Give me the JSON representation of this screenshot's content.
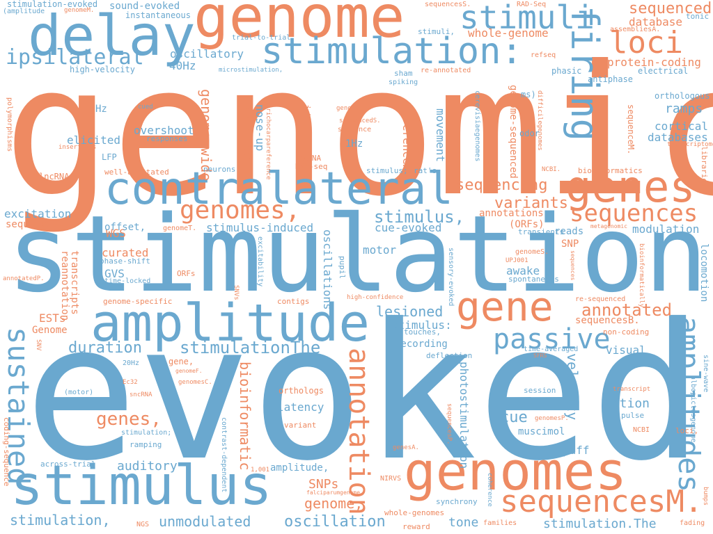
{
  "colors": {
    "orange": "#ee8a62",
    "blue": "#6aa8cf",
    "background": "#ffffff"
  },
  "words": {
    "genomic": "genomic",
    "evoked": "evoked",
    "stimulation": "stimulation",
    "genome": "genome",
    "delay": "delay",
    "stimulation_colon": "stimulation:",
    "stimuli": "stimuli",
    "loci": "loci",
    "firing": "firing",
    "contralateral": "contralateral",
    "genes": "genes",
    "amplitude": "amplitude",
    "gene": "gene",
    "genomes": "genomes",
    "stimulus": "stimulus",
    "sequencesM_dot": "sequencesM.",
    "amplitudes": "amplitudes",
    "sustained": "sustained",
    "annotation": "annotation",
    "genomes_comma": "genomes,",
    "sequences": "sequences",
    "passive": "passive",
    "ipsilateral": "ipsilateral",
    "sequenced": "sequenced",
    "database": "database",
    "sequencing": "sequencing",
    "variants": "variants",
    "stimulus_comma": "stimulus,",
    "annotated": "annotated",
    "stimulationThe": "stimulationThe",
    "duration": "duration",
    "genes_comma": "genes,",
    "cue": "cue",
    "motion": "motion",
    "velocity": "velocity",
    "lesioned": "lesioned",
    "genome_wide": "genome-wide",
    "ramps": "ramps",
    "cortical": "cortical",
    "databases": "databases",
    "protein_coding": "protein-coding",
    "oscillatory": "oscillatory",
    "40Hz": "40Hz",
    "overshoot": "overshoot",
    "elicited": "elicited",
    "curated": "curated",
    "WGS": "WGS",
    "offset_comma": "offset,",
    "stimulus_induced": "stimulus-induced",
    "cue_evoked": "cue-evoked",
    "modulation": "modulation",
    "SNP": "SNP",
    "awake": "awake",
    "motor": "motor",
    "sound_evoked": "sound-evoked",
    "whole_genome": "whole-genome",
    "genome_sequenced": "genome-sequenced",
    "bioinformatic": "bioinformatic",
    "SNPs": "SNPs",
    "auditory": "auditory",
    "genome_comma": "genome,",
    "stimulation_comma": "stimulation,",
    "unmodulated": "unmodulated",
    "oscillation": "oscillation",
    "tone": "tone",
    "stimulation_dotThe": "stimulation.The",
    "latency": "latency",
    "muscimol": "muscimol",
    "puff": "puff",
    "recording": "recording",
    "visual": "visual",
    "stimulus_colon": "stimulus:",
    "oscillations": "oscillations",
    "movement": "movement",
    "photostimulation": "photostimulation",
    "annotations": "annotations",
    "ORFs_paren": "(ORFs)",
    "reads": "reads",
    "referenceA": "referenceA.",
    "identifiedA": "identifiedA.",
    "sequencesC": "sequencesC.",
    "nose_up": "nose-up",
    "Hz": "Hz",
    "1Hz": "1Hz",
    "excitation": "excitation",
    "sequencesA": "sequencesA.",
    "GVS": "GVS",
    "ESTs": "ESTs",
    "Genome": "Genome",
    "reannotation": "reannotation",
    "transcripts": "transcripts",
    "sequencesB": "sequencesB.",
    "locomotion": "locomotion",
    "sequenceM": "sequenceM.",
    "orthologous": "orthologous",
    "antiphase": "antiphase",
    "electrical": "electrical",
    "phasic": "phasic",
    "refseq": "refseq",
    "tonic": "tonic",
    "assembliesA": "assembliesA.",
    "RAD_Seq": "RAD-Seq",
    "sequencesS": "sequencesS.",
    "high_velocity": "high-velocity",
    "instantaneous": "instantaneous",
    "stimulation_evoked": "stimulation-evoked",
    "amplitude_paren": "(amplitude",
    "genomeM": "genomeM.",
    "trial_to_trial": "trial-to-trial",
    "microstimulation": "microstimulation,",
    "stimuli_comma": "stimuli,",
    "re_annotated": "re-annotated",
    "sham": "sham",
    "spiking": "spiking",
    "ms_paren": "ms)",
    "polymorphisms": "polymorphisms",
    "insertions": "insertions",
    "lncRNA": "lncRNA",
    "LFP": "LFP",
    "cued": "cued",
    "responses": "responses",
    "well_annotated": "well-annotated",
    "neurons": "neurons",
    "trichocarpareference": "trichocarpareference",
    "RNA_seq": "RNA-seq",
    "miRNA": "miRNA",
    "genomeL": "genomeL.",
    "sequencedS": "sequencedS.",
    "sequence": "sequence",
    "stimulus_semicolon": "stimulus;",
    "rats": "rat's",
    "odor": "odor",
    "difficilegenomes": "difficilegenomes",
    "cerevisiaegenomes": "cerevisiaegenomes",
    "NCBI_dot": "NCBI.",
    "bioinformatics": "bioinformatics",
    "transcriptome": "transcriptome",
    "libraries": "libraries",
    "genomeT": "genomeT.",
    "transients": "transients",
    "metagenomic": "metagenomic",
    "phase_shift": "phase-shift",
    "time_locked": "time-locked",
    "ORFs": "ORFs",
    "genome_specific": "genome-specific",
    "contigs": "contigs",
    "SNVs": "SNVs",
    "excitability": "excitability",
    "pupil": "pupil",
    "sensory_evoked": "sensory-evoked",
    "high_confidence": "high-confidence",
    "spontaneous": "spontaneous",
    "genomeS": "genomeS.",
    "UPJ001": "UPJ001",
    "bioinformatically": "bioinformatically",
    "sequences_lower": "sequences",
    "re_sequenced": "re-sequenced",
    "annotatedP": "annotatedP.",
    "SNV": "SNV",
    "touches": "touches,",
    "deflection": "deflection",
    "time_averaged": "time-averaged",
    "SFRS": "SFRS",
    "non_coding": "non-coding",
    "albopictusgenome": "albopictusgenome",
    "sine_wave": "sine-wave",
    "20Hz": "20Hz",
    "gene_comma": "gene,",
    "genomeF": "genomeF.",
    "Ec32": "Ec32",
    "genomesC": "genomesC.",
    "motor_paren": "(motor)",
    "sncRNA": "sncRNA",
    "orthologs": "orthologs",
    "variant": "variant",
    "session": "session",
    "transcript": "transcript",
    "pulse": "pulse",
    "genomesP": "genomesP.",
    "sequencesP": "sequencesP.",
    "stimulation_semicolon": "stimulation;",
    "ramping": "ramping",
    "across_trial": "across-trial",
    "genesA": "genesA.",
    "NCBI": "NCBI",
    "loci_comma": "loci,",
    "coding_sequence": "coding-sequence",
    "contrast_dependent": "contrast-dependent",
    "num_1001": "1,001",
    "amplitude_comma": "amplitude,",
    "NIRVS": "NIRVS",
    "falciparumgenome": "falciparumgenome",
    "coherence": "coherence",
    "synchrony": "synchrony",
    "whole_genomes": "whole-genomes",
    "NGS": "NGS",
    "reward": "reward",
    "families": "families",
    "fading": "fading",
    "bumps": "bumps"
  }
}
